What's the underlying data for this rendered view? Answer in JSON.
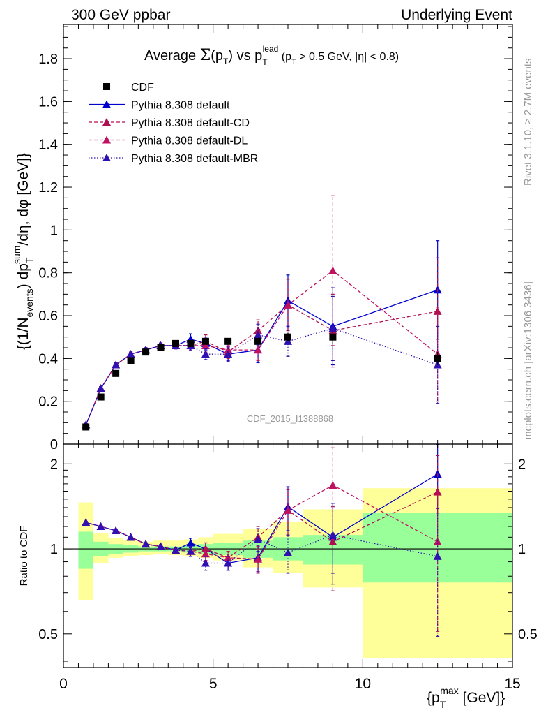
{
  "header": {
    "left": "300 GeV ppbar",
    "right": "Underlying Event"
  },
  "side": {
    "rivet": "Rivet 3.1.10, ≥ 2.7M events",
    "mcplots": "mcplots.cern.ch [arXiv:1306.3436]"
  },
  "chart_data": [
    {
      "type": "scatter",
      "panel": "main",
      "title": "Average Σ(pT) vs pT lead (pT > 0.5 GeV, |η| < 0.8)",
      "ylabel": "{(1/N_events) dp_T^sum/dη, dφ [GeV]}",
      "watermark": "CDF_2015_I1388868",
      "xlim": [
        0,
        15
      ],
      "ylim": [
        0,
        1.96
      ],
      "y_ticks": [
        {
          "v": 0,
          "label": "0"
        },
        {
          "v": 0.2,
          "label": "0.2"
        },
        {
          "v": 0.4,
          "label": "0.4"
        },
        {
          "v": 0.6,
          "label": "0.6"
        },
        {
          "v": 0.8,
          "label": "0.8"
        },
        {
          "v": 1.0,
          "label": "1"
        },
        {
          "v": 1.2,
          "label": "1.2"
        },
        {
          "v": 1.4,
          "label": "1.4"
        },
        {
          "v": 1.6,
          "label": "1.6"
        },
        {
          "v": 1.8,
          "label": "1.8"
        }
      ],
      "legend_position": "top-left",
      "series": [
        {
          "name": "CDF",
          "color": "#000000",
          "marker": "square",
          "line": "none",
          "x": [
            0.75,
            1.25,
            1.75,
            2.25,
            2.75,
            3.25,
            3.75,
            4.25,
            4.75,
            5.5,
            6.5,
            7.5,
            9.0,
            12.5
          ],
          "y": [
            0.08,
            0.22,
            0.33,
            0.39,
            0.43,
            0.45,
            0.47,
            0.47,
            0.48,
            0.48,
            0.48,
            0.5,
            0.5,
            0.4
          ],
          "err": [
            0.005,
            0.008,
            0.008,
            0.008,
            0.008,
            0.008,
            0.008,
            0.01,
            0.01,
            0.01,
            0.015,
            0.02,
            0.03,
            0.03
          ]
        },
        {
          "name": "Pythia 8.308 default",
          "color": "#0000cc",
          "marker": "triangle",
          "line": "solid",
          "x": [
            0.75,
            1.25,
            1.75,
            2.25,
            2.75,
            3.25,
            3.75,
            4.25,
            4.75,
            5.5,
            6.5,
            7.5,
            9.0,
            12.5
          ],
          "y": [
            0.09,
            0.26,
            0.37,
            0.42,
            0.44,
            0.46,
            0.46,
            0.49,
            0.47,
            0.42,
            0.44,
            0.67,
            0.55,
            0.72
          ],
          "err": [
            0.005,
            0.008,
            0.01,
            0.01,
            0.01,
            0.012,
            0.015,
            0.025,
            0.03,
            0.035,
            0.06,
            0.12,
            0.18,
            0.23
          ]
        },
        {
          "name": "Pythia 8.308 default-CD",
          "color": "#b01050",
          "marker": "triangle",
          "line": "dashed",
          "x": [
            0.75,
            1.25,
            1.75,
            2.25,
            2.75,
            3.25,
            3.75,
            4.25,
            4.75,
            5.5,
            6.5,
            7.5,
            9.0,
            12.5
          ],
          "y": [
            0.09,
            0.26,
            0.37,
            0.42,
            0.44,
            0.46,
            0.46,
            0.46,
            0.48,
            0.43,
            0.53,
            0.65,
            0.53,
            0.62
          ],
          "err": [
            0.005,
            0.008,
            0.01,
            0.01,
            0.01,
            0.012,
            0.015,
            0.02,
            0.03,
            0.03,
            0.05,
            0.12,
            0.17,
            0.25
          ]
        },
        {
          "name": "Pythia 8.308 default-DL",
          "color": "#c01060",
          "marker": "triangle",
          "line": "dashed",
          "x": [
            0.75,
            1.25,
            1.75,
            2.25,
            2.75,
            3.25,
            3.75,
            4.25,
            4.75,
            5.5,
            6.5,
            7.5,
            9.0,
            12.5
          ],
          "y": [
            0.09,
            0.26,
            0.37,
            0.42,
            0.44,
            0.46,
            0.46,
            0.46,
            0.46,
            0.44,
            0.44,
            0.65,
            0.81,
            0.42
          ],
          "err": [
            0.005,
            0.008,
            0.01,
            0.01,
            0.01,
            0.012,
            0.015,
            0.02,
            0.03,
            0.03,
            0.05,
            0.12,
            0.35,
            0.22
          ]
        },
        {
          "name": "Pythia 8.308 default-MBR",
          "color": "#3010b0",
          "marker": "triangle",
          "line": "dotted",
          "x": [
            0.75,
            1.25,
            1.75,
            2.25,
            2.75,
            3.25,
            3.75,
            4.25,
            4.75,
            5.5,
            6.5,
            7.5,
            9.0,
            12.5
          ],
          "y": [
            0.09,
            0.26,
            0.37,
            0.42,
            0.44,
            0.46,
            0.46,
            0.46,
            0.42,
            0.42,
            0.51,
            0.48,
            0.54,
            0.37
          ],
          "err": [
            0.005,
            0.008,
            0.01,
            0.01,
            0.01,
            0.012,
            0.015,
            0.02,
            0.025,
            0.03,
            0.05,
            0.07,
            0.15,
            0.18
          ]
        }
      ]
    },
    {
      "type": "scatter",
      "panel": "ratio",
      "ylabel": "Ratio to CDF",
      "xlabel": "{p_T^max [GeV]}",
      "xlim": [
        0,
        15
      ],
      "ylim": [
        0.38,
        2.35
      ],
      "y_scale": "log",
      "x_ticks": [
        {
          "v": 0,
          "label": "0"
        },
        {
          "v": 5,
          "label": "5"
        },
        {
          "v": 10,
          "label": "10"
        },
        {
          "v": 15,
          "label": "15"
        }
      ],
      "y_ticks": [
        {
          "v": 0.5,
          "label": "0.5"
        },
        {
          "v": 1,
          "label": "1"
        },
        {
          "v": 2,
          "label": "2"
        }
      ],
      "bin_edges": [
        0.5,
        1.0,
        1.5,
        2.0,
        2.5,
        3.0,
        3.5,
        4.0,
        4.5,
        5.0,
        6.0,
        7.0,
        8.0,
        10.0,
        15.0
      ],
      "uncertainty_bands": [
        {
          "name": "stat",
          "color": "#99ff99",
          "lo": [
            0.85,
            0.94,
            0.96,
            0.97,
            0.98,
            0.98,
            0.98,
            0.97,
            0.96,
            0.95,
            0.93,
            0.91,
            0.88,
            0.76
          ],
          "hi": [
            1.15,
            1.06,
            1.04,
            1.03,
            1.02,
            1.02,
            1.02,
            1.03,
            1.04,
            1.05,
            1.07,
            1.1,
            1.12,
            1.34
          ]
        },
        {
          "name": "total",
          "color": "#ffff99",
          "lo": [
            0.66,
            0.89,
            0.93,
            0.94,
            0.95,
            0.96,
            0.95,
            0.94,
            0.93,
            0.91,
            0.86,
            0.82,
            0.73,
            0.41
          ],
          "hi": [
            1.46,
            1.14,
            1.09,
            1.07,
            1.06,
            1.07,
            1.07,
            1.08,
            1.1,
            1.13,
            1.18,
            1.25,
            1.38,
            1.64
          ]
        }
      ],
      "series": [
        {
          "name": "Pythia 8.308 default",
          "color": "#0000cc",
          "line": "solid",
          "x": [
            0.75,
            1.25,
            1.75,
            2.25,
            2.75,
            3.25,
            3.75,
            4.25,
            4.75,
            5.5,
            6.5,
            7.5,
            9.0,
            12.5
          ],
          "y": [
            1.24,
            1.2,
            1.16,
            1.1,
            1.04,
            1.02,
            0.99,
            1.05,
            1.0,
            0.89,
            0.93,
            1.41,
            1.1,
            1.84
          ],
          "err": [
            0.01,
            0.01,
            0.01,
            0.01,
            0.01,
            0.015,
            0.02,
            0.04,
            0.05,
            0.05,
            0.1,
            0.25,
            0.35,
            0.5
          ]
        },
        {
          "name": "Pythia 8.308 default-CD",
          "color": "#b01050",
          "line": "dashed",
          "x": [
            0.75,
            1.25,
            1.75,
            2.25,
            2.75,
            3.25,
            3.75,
            4.25,
            4.75,
            5.5,
            6.5,
            7.5,
            9.0,
            12.5
          ],
          "y": [
            1.24,
            1.2,
            1.16,
            1.1,
            1.04,
            1.02,
            0.99,
            0.98,
            1.0,
            0.93,
            1.1,
            1.37,
            1.06,
            1.59
          ],
          "err": [
            0.01,
            0.01,
            0.01,
            0.01,
            0.01,
            0.015,
            0.02,
            0.04,
            0.05,
            0.05,
            0.1,
            0.25,
            0.35,
            0.55
          ]
        },
        {
          "name": "Pythia 8.308 default-DL",
          "color": "#c01060",
          "line": "dashed",
          "x": [
            0.75,
            1.25,
            1.75,
            2.25,
            2.75,
            3.25,
            3.75,
            4.25,
            4.75,
            5.5,
            6.5,
            7.5,
            9.0,
            12.5
          ],
          "y": [
            1.24,
            1.2,
            1.16,
            1.1,
            1.04,
            1.02,
            0.99,
            0.98,
            0.96,
            0.93,
            0.92,
            1.37,
            1.68,
            1.06
          ],
          "err": [
            0.01,
            0.01,
            0.01,
            0.01,
            0.01,
            0.015,
            0.02,
            0.04,
            0.05,
            0.05,
            0.1,
            0.25,
            0.6,
            0.55
          ]
        },
        {
          "name": "Pythia 8.308 default-MBR",
          "color": "#3010b0",
          "line": "dotted",
          "x": [
            0.75,
            1.25,
            1.75,
            2.25,
            2.75,
            3.25,
            3.75,
            4.25,
            4.75,
            5.5,
            6.5,
            7.5,
            9.0,
            12.5
          ],
          "y": [
            1.24,
            1.2,
            1.16,
            1.1,
            1.04,
            1.02,
            0.99,
            0.98,
            0.89,
            0.89,
            1.08,
            0.97,
            1.12,
            0.94
          ],
          "err": [
            0.01,
            0.01,
            0.01,
            0.01,
            0.01,
            0.015,
            0.02,
            0.04,
            0.05,
            0.05,
            0.1,
            0.15,
            0.3,
            0.45
          ]
        }
      ]
    }
  ]
}
